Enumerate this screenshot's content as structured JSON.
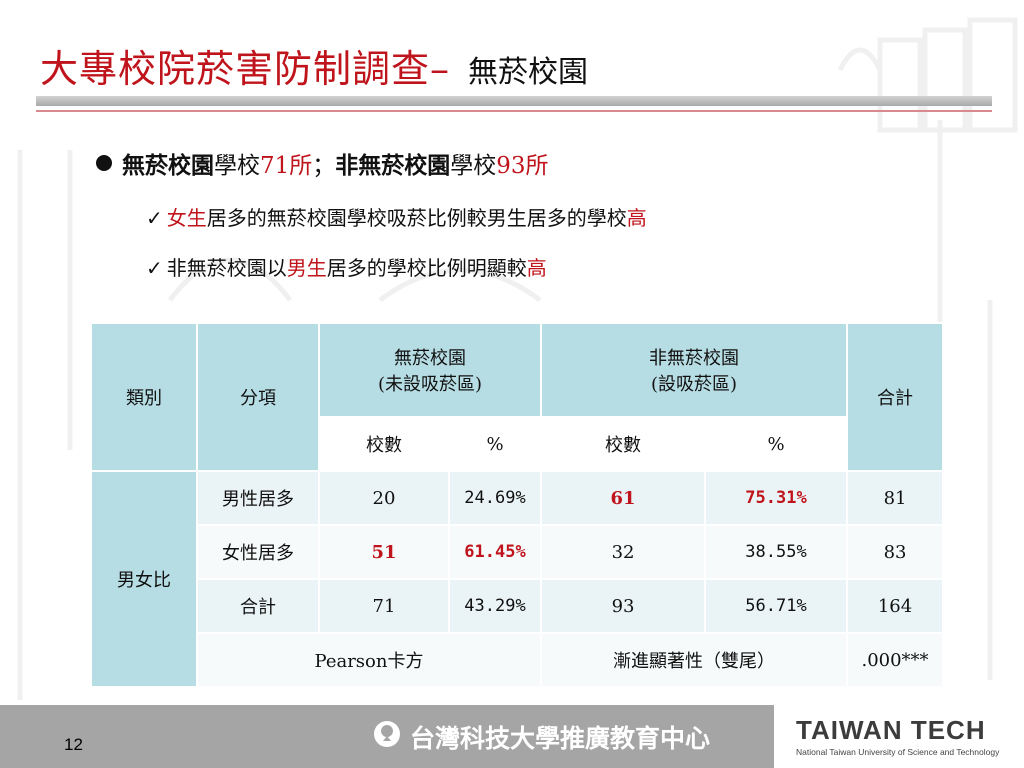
{
  "title": {
    "main": "大專校院菸害防制調查–",
    "sub": "無菸校園"
  },
  "bullet": {
    "p1": "無菸校園",
    "p2": "學校",
    "p3": "71所",
    "p4": "；",
    "p5": "非無菸校園",
    "p6": "學校",
    "p7": "93所"
  },
  "sub1": {
    "check": "✓",
    "p1": "女生",
    "p2": "居多的無菸校園學校吸菸比例較男生居多的學校",
    "p3": "高"
  },
  "sub2": {
    "check": "✓",
    "p1": "非無菸校園以",
    "p2": "男生",
    "p3": "居多的學校比例明顯較",
    "p4": "高"
  },
  "table": {
    "h_category": "類別",
    "h_item": "分項",
    "h_smokefree_l1": "無菸校園",
    "h_smokefree_l2": "(未設吸菸區)",
    "h_nonsmokefree_l1": "非無菸校園",
    "h_nonsmokefree_l2": "(設吸菸區)",
    "h_total": "合計",
    "h_count1": "校數",
    "h_pct1": "%",
    "h_count2": "校數",
    "h_pct2": "%",
    "group": "男女比",
    "rows": [
      {
        "item": "男性居多",
        "c1": "20",
        "p1": "24.69%",
        "c2": "61",
        "p2": "75.31%",
        "total": "81"
      },
      {
        "item": "女性居多",
        "c1": "51",
        "p1": "61.45%",
        "c2": "32",
        "p2": "38.55%",
        "total": "83"
      },
      {
        "item": "合計",
        "c1": "71",
        "p1": "43.29%",
        "c2": "93",
        "p2": "56.71%",
        "total": "164"
      }
    ],
    "pearson_label": "Pearson卡方",
    "sig_label": "漸進顯著性（雙尾）",
    "sig_value": ".000***"
  },
  "footer": {
    "page": "12",
    "org": "台灣科技大學推廣教育中心",
    "brand": "TAIWAN TECH",
    "brand_tag": "National Taiwan University of Science and Technology"
  },
  "colors": {
    "accent_red": "#c0141c",
    "table_header": "#b7dde4",
    "footer_gray": "#a5a5a5"
  }
}
